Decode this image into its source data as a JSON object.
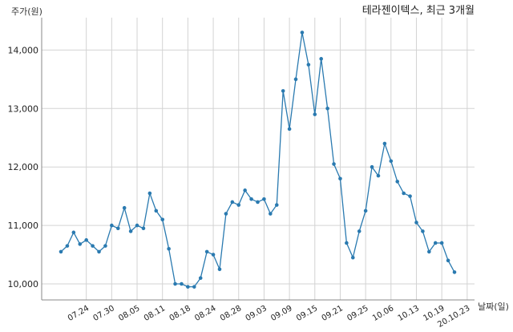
{
  "chart_data": {
    "type": "line",
    "title": "테라젠이텍스, 최근 3개월",
    "ylabel": "주가(원)",
    "xlabel": "날짜(일)",
    "ylim": [
      9800,
      14600
    ],
    "yticks": [
      10000,
      11000,
      12000,
      13000,
      14000
    ],
    "ytick_labels": [
      "10,000",
      "11,000",
      "12,000",
      "13,000",
      "14,000"
    ],
    "xtick_labels": [
      "07.24",
      "07.30",
      "08.05",
      "08.11",
      "08.18",
      "08.24",
      "08.28",
      "09.03",
      "09.09",
      "09.15",
      "09.21",
      "09.25",
      "10.06",
      "10.13",
      "10.19",
      "20.10.23"
    ],
    "xtick_index": [
      4,
      8,
      12,
      16,
      20,
      24,
      28,
      32,
      36,
      40,
      44,
      48,
      52,
      56,
      60,
      64
    ],
    "grid": true,
    "color": "#2a7ab0",
    "series": [
      {
        "values": [
          10550,
          10650,
          10880,
          10680,
          10750,
          10650,
          10550,
          10650,
          11000,
          10950,
          11300,
          10900,
          11000,
          10950,
          11550,
          11250,
          11100,
          10600,
          10000,
          10000,
          9950,
          9950,
          10100,
          10550,
          10500,
          10250,
          11200,
          11400,
          11350,
          11600,
          11450,
          11400,
          11450,
          11200,
          11350,
          13300,
          12650,
          13500,
          14300,
          13750,
          12900,
          13850,
          13000,
          12050,
          11800,
          10700,
          10450,
          10900,
          11250,
          12000,
          11850,
          12400,
          12100,
          11750,
          11550,
          11500,
          11050,
          10900,
          10550,
          10700,
          10700,
          10400,
          10200
        ]
      }
    ]
  }
}
